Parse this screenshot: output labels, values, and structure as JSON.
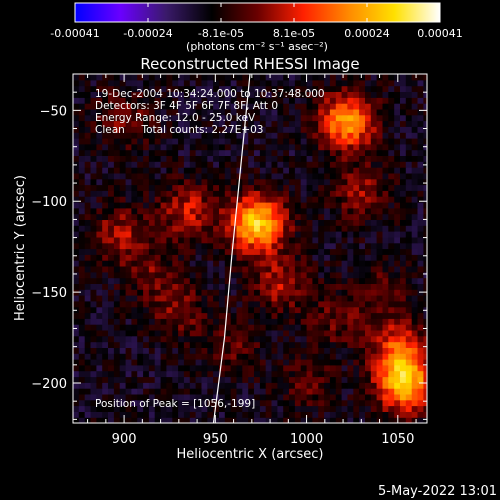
{
  "chart_data": {
    "type": "heatmap",
    "title": "Reconstructed RHESSI Image",
    "xlabel": "Heliocentric X (arcsec)",
    "ylabel": "Heliocentric Y (arcsec)",
    "xlim": [
      872,
      1066
    ],
    "ylim": [
      -222,
      -30
    ],
    "x_ticks": [
      900,
      950,
      1000,
      1050
    ],
    "y_ticks": [
      -50,
      -100,
      -150,
      -200
    ],
    "colorbar": {
      "min": -0.00041,
      "max": 0.00041,
      "ticks": [
        "-0.00041",
        "-0.00024",
        "-8.1e-05",
        "8.1e-05",
        "0.00024",
        "0.00041"
      ],
      "unit_label": "(photons cm⁻² s⁻¹ asec⁻²)",
      "colormap": [
        "#0000ff",
        "#6a00ff",
        "#3a1a6a",
        "#000000",
        "#6a0000",
        "#ff2000",
        "#ff8a00",
        "#ffe000",
        "#ffffff"
      ]
    },
    "annotations": [
      "19-Dec-2004 10:34:24.000 to 10:37:48.000",
      "Detectors: 3F 4F 5F 6F 7F 8F, Att 0",
      "Energy Range: 12.0 - 25.0 keV",
      "Clean     Total counts: 2.27E+03"
    ],
    "peak": {
      "label": "Position of Peak = [1056,-199]",
      "x": 1056,
      "y": -199
    },
    "sources": [
      {
        "x": 973,
        "y": -112,
        "amplitude": 0.00041
      },
      {
        "x": 1054,
        "y": -200,
        "amplitude": 0.00038
      },
      {
        "x": 1022,
        "y": -56,
        "amplitude": 0.00034
      },
      {
        "x": 1050,
        "y": -180,
        "amplitude": 0.00022
      },
      {
        "x": 935,
        "y": -105,
        "amplitude": 0.00018
      },
      {
        "x": 898,
        "y": -118,
        "amplitude": 0.00016
      },
      {
        "x": 985,
        "y": -145,
        "amplitude": 0.00016
      },
      {
        "x": 1030,
        "y": -95,
        "amplitude": 0.00014
      },
      {
        "x": 930,
        "y": -160,
        "amplitude": 0.00012
      },
      {
        "x": 915,
        "y": -140,
        "amplitude": 0.0001
      },
      {
        "x": 900,
        "y": -55,
        "amplitude": 0.00012
      },
      {
        "x": 960,
        "y": -180,
        "amplitude": 0.0001
      },
      {
        "x": 1000,
        "y": -200,
        "amplitude": 9e-05
      },
      {
        "x": 1040,
        "y": -150,
        "amplitude": 0.0001
      },
      {
        "x": 1015,
        "y": -165,
        "amplitude": 0.0001
      }
    ],
    "limb_curve": [
      {
        "x": 969,
        "y": -30
      },
      {
        "x": 964,
        "y": -80
      },
      {
        "x": 959,
        "y": -130
      },
      {
        "x": 955,
        "y": -175
      },
      {
        "x": 949,
        "y": -222
      }
    ]
  },
  "footer": {
    "timestamp": "5-May-2022 13:01"
  }
}
